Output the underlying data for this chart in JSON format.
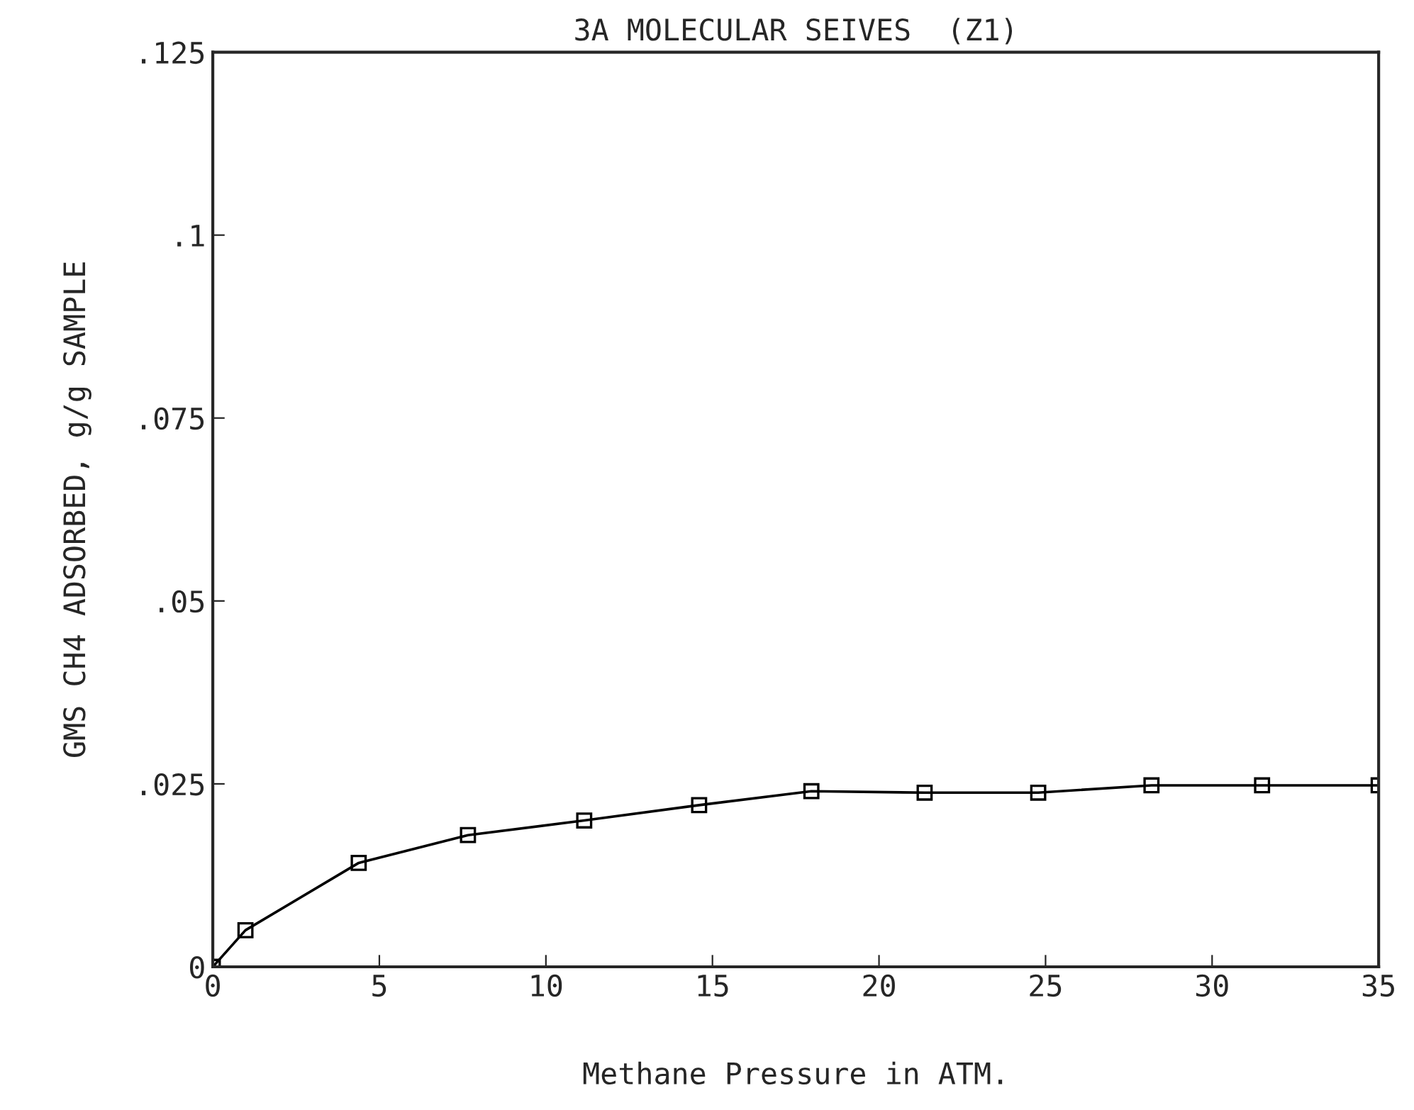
{
  "chart_data": {
    "type": "line",
    "title": "3A MOLECULAR SEIVES  (Z1)",
    "xlabel": "Methane Pressure in ATM.",
    "ylabel": "GMS CH4 ADSORBED, g/g SAMPLE",
    "x": [
      0,
      0.98,
      4.38,
      7.66,
      11.15,
      14.6,
      17.97,
      21.37,
      24.78,
      28.18,
      31.5,
      35
    ],
    "series": [
      {
        "color": "#000000",
        "values": [
          0,
          0.005,
          0.0142,
          0.018,
          0.02,
          0.0221,
          0.024,
          0.0238,
          0.0238,
          0.0248,
          0.0248,
          0.0248
        ]
      }
    ],
    "xlim": [
      0,
      35
    ],
    "xticks": [
      0,
      5,
      10,
      15,
      20,
      25,
      30,
      35
    ],
    "ylim": [
      0,
      0.125
    ],
    "yticks": [
      {
        "value": 0,
        "label": "0"
      },
      {
        "value": 0.025,
        "label": ".025"
      },
      {
        "value": 0.05,
        "label": ".05"
      },
      {
        "value": 0.075,
        "label": ".075"
      },
      {
        "value": 0.1,
        "label": ".1"
      },
      {
        "value": 0.125,
        "label": ".125"
      }
    ],
    "marker": "square",
    "line_style": "solid",
    "grid": false,
    "legend": false
  }
}
